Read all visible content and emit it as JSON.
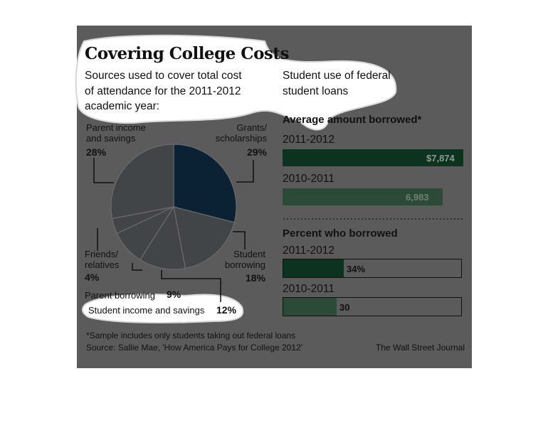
{
  "header": {
    "title": "Covering College Costs",
    "subtitle_left": [
      "Sources used to cover total cost",
      "of attendance for the 2011-2012",
      "academic year:"
    ],
    "subtitle_right": [
      "Student use of federal",
      "student loans"
    ]
  },
  "colors": {
    "panel": "#5b5b5b",
    "pie_highlight": "#0a2233",
    "pie_slice": "#424548",
    "pie_border": "#6a6a6a",
    "bar_dark_green": "#0c3320",
    "bar_green": "#2b4a38",
    "highlight_white": "#ffffff"
  },
  "chart_data": [
    {
      "type": "pie",
      "slices": [
        {
          "label": "Grants/ scholarships",
          "value": 29,
          "display": "29%"
        },
        {
          "label": "Student borrowing",
          "value": 18,
          "display": "18%"
        },
        {
          "label": "Student income and savings",
          "value": 12,
          "display": "12%"
        },
        {
          "label": "Parent borrowing",
          "value": 9,
          "display": "9%"
        },
        {
          "label": "Friends/ relatives",
          "value": 4,
          "display": "4%"
        },
        {
          "label": "Parent income and savings",
          "value": 28,
          "display": "28%"
        }
      ]
    },
    {
      "type": "bar",
      "title": "Average amount borrowed*",
      "categories": [
        "2011-2012",
        "2010-2011"
      ],
      "values": [
        7874,
        6983
      ],
      "value_labels": [
        "$7,874",
        "6,983"
      ]
    },
    {
      "type": "bar",
      "title": "Percent who borrowed",
      "categories": [
        "2011-2012",
        "2010-2011"
      ],
      "values": [
        34,
        30
      ],
      "value_labels": [
        "34%",
        "30"
      ],
      "ylim": [
        0,
        100
      ]
    }
  ],
  "labels": {
    "parent_income": [
      "Parent income",
      "and savings"
    ],
    "grants": [
      "Grants/",
      "scholarships"
    ],
    "friends": [
      "Friends/",
      "relatives"
    ],
    "student_borrowing": [
      "Student",
      "borrowing"
    ],
    "parent_borrowing": "Parent borrowing",
    "student_income": "Student income and savings"
  },
  "footer": {
    "note": "*Sample includes only students taking out federal loans",
    "source": "Source: Sallie Mae, 'How America Pays for College 2012'",
    "credit": "The Wall Street Journal"
  }
}
